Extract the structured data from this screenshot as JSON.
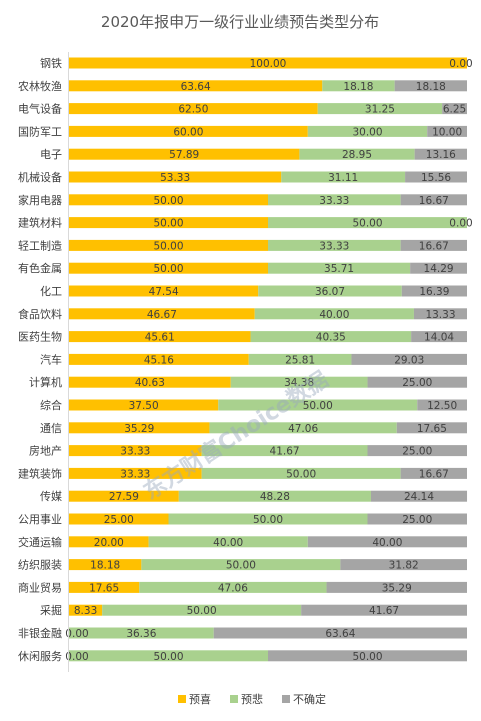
{
  "chart_data": {
    "type": "bar",
    "stacked": true,
    "orientation": "horizontal",
    "title": "2020年报申万一级行业业绩预告类型分布",
    "xlim": [
      0,
      100
    ],
    "grid": false,
    "legend_position": "bottom",
    "categories": [
      "钢铁",
      "农林牧渔",
      "电气设备",
      "国防军工",
      "电子",
      "机械设备",
      "家用电器",
      "建筑材料",
      "轻工制造",
      "有色金属",
      "化工",
      "食品饮料",
      "医药生物",
      "汽车",
      "计算机",
      "综合",
      "通信",
      "房地产",
      "建筑装饰",
      "传媒",
      "公用事业",
      "交通运输",
      "纺织服装",
      "商业贸易",
      "采掘",
      "非银金融",
      "休闲服务"
    ],
    "series": [
      {
        "name": "预喜",
        "color": "#ffc000",
        "values": [
          100.0,
          63.64,
          62.5,
          60.0,
          57.89,
          53.33,
          50.0,
          50.0,
          50.0,
          50.0,
          47.54,
          46.67,
          45.61,
          45.16,
          40.63,
          37.5,
          35.29,
          33.33,
          33.33,
          27.59,
          25.0,
          20.0,
          18.18,
          17.65,
          8.33,
          0.0,
          0.0
        ]
      },
      {
        "name": "预悲",
        "color": "#a9d18e",
        "values": [
          0,
          18.18,
          31.25,
          30.0,
          28.95,
          31.11,
          33.33,
          50.0,
          33.33,
          35.71,
          36.07,
          40.0,
          40.35,
          25.81,
          34.38,
          50.0,
          47.06,
          41.67,
          50.0,
          48.28,
          50.0,
          40.0,
          50.0,
          47.06,
          50.0,
          36.36,
          50.0
        ]
      },
      {
        "name": "不确定",
        "color": "#a5a5a5",
        "values": [
          0.0,
          18.18,
          6.25,
          10.0,
          13.16,
          15.56,
          16.67,
          0.0,
          16.67,
          14.29,
          16.39,
          13.33,
          14.04,
          29.03,
          25.0,
          12.5,
          17.65,
          25.0,
          16.67,
          24.14,
          25.0,
          40.0,
          31.82,
          35.29,
          41.67,
          63.64,
          50.0
        ]
      }
    ],
    "labels": [
      [
        "100.00",
        "",
        "0.00"
      ],
      [
        "63.64",
        "18.18",
        "18.18"
      ],
      [
        "62.50",
        "31.25",
        "6.25"
      ],
      [
        "60.00",
        "30.00",
        "10.00"
      ],
      [
        "57.89",
        "28.95",
        "13.16"
      ],
      [
        "53.33",
        "31.11",
        "15.56"
      ],
      [
        "50.00",
        "33.33",
        "16.67"
      ],
      [
        "50.00",
        "50.00",
        "0.00"
      ],
      [
        "50.00",
        "33.33",
        "16.67"
      ],
      [
        "50.00",
        "35.71",
        "14.29"
      ],
      [
        "47.54",
        "36.07",
        "16.39"
      ],
      [
        "46.67",
        "40.00",
        "13.33"
      ],
      [
        "45.61",
        "40.35",
        "14.04"
      ],
      [
        "45.16",
        "25.81",
        "29.03"
      ],
      [
        "40.63",
        "34.38",
        "25.00"
      ],
      [
        "37.50",
        "50.00",
        "12.50"
      ],
      [
        "35.29",
        "47.06",
        "17.65"
      ],
      [
        "33.33",
        "41.67",
        "25.00"
      ],
      [
        "33.33",
        "50.00",
        "16.67"
      ],
      [
        "27.59",
        "48.28",
        "24.14"
      ],
      [
        "25.00",
        "50.00",
        "25.00"
      ],
      [
        "20.00",
        "40.00",
        "40.00"
      ],
      [
        "18.18",
        "50.00",
        "31.82"
      ],
      [
        "17.65",
        "47.06",
        "35.29"
      ],
      [
        "8.33",
        "50.00",
        "41.67"
      ],
      [
        "0.00",
        "36.36",
        "63.64"
      ],
      [
        "0.00",
        "50.00",
        "50.00"
      ]
    ]
  },
  "watermark": "东方财富Choice数据"
}
